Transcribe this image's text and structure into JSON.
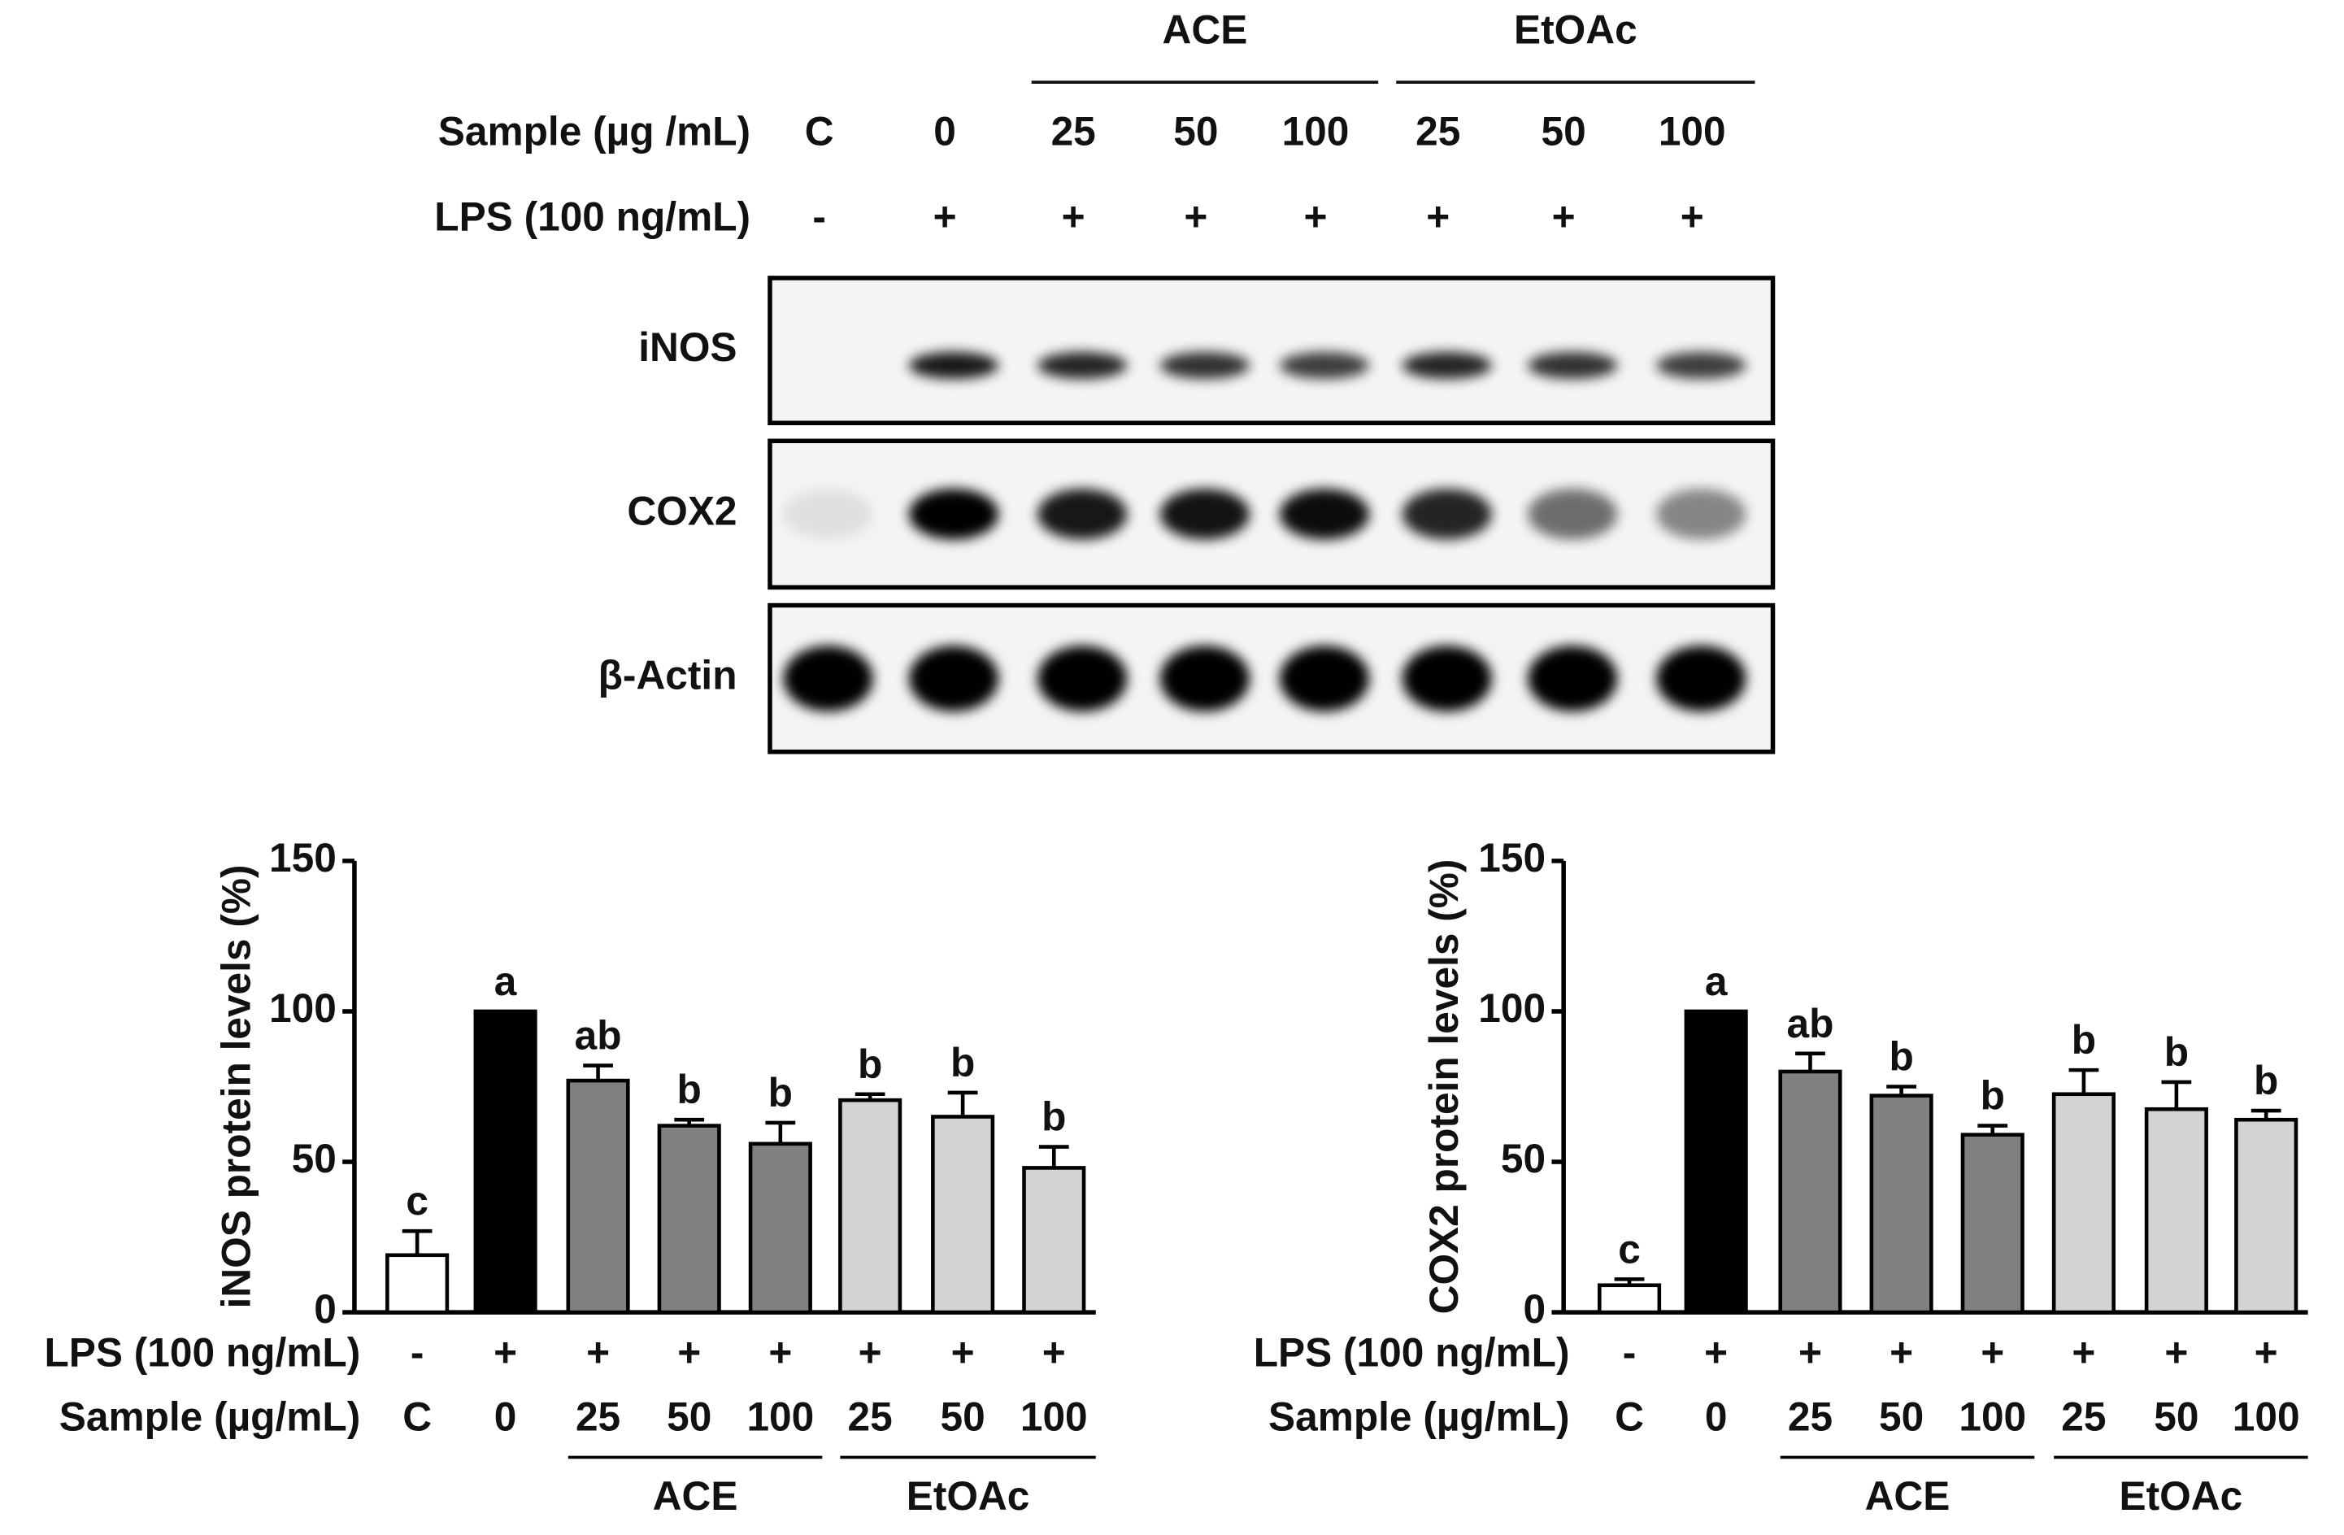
{
  "blot": {
    "sample_label": "Sample (µg /mL)",
    "lps_label": "LPS (100 ng/mL)",
    "groups": [
      "ACE",
      "EtOAc"
    ],
    "samples": [
      "C",
      "0",
      "25",
      "50",
      "100",
      "25",
      "50",
      "100"
    ],
    "lps": [
      "-",
      "+",
      "+",
      "+",
      "+",
      "+",
      "+",
      "+"
    ],
    "proteins": [
      "iNOS",
      "COX2",
      "β-Actin"
    ]
  },
  "chart_data": [
    {
      "type": "bar",
      "y_label": "iNOS protein levels (%)",
      "lps_label": "LPS (100 ng/mL)",
      "sample_label": "Sample (µg/mL)",
      "categories": [
        "C",
        "0",
        "25",
        "50",
        "100",
        "25",
        "50",
        "100"
      ],
      "lps": [
        "-",
        "+",
        "+",
        "+",
        "+",
        "+",
        "+",
        "+"
      ],
      "groups": [
        "ACE",
        "EtOAc"
      ],
      "values": [
        19,
        100,
        77,
        62,
        56,
        70.5,
        65,
        48
      ],
      "errors": [
        8,
        null,
        5,
        2,
        7,
        2,
        8,
        7
      ],
      "letters": [
        "c",
        "a",
        "ab",
        "b",
        "b",
        "b",
        "b",
        "b"
      ],
      "colors": [
        "#ffffff",
        "#000000",
        "#808080",
        "#808080",
        "#808080",
        "#d3d3d3",
        "#d3d3d3",
        "#d3d3d3"
      ],
      "ylim": [
        0,
        150
      ],
      "yticks": [
        0,
        50,
        100,
        150
      ]
    },
    {
      "type": "bar",
      "y_label": "COX2 protein levels (%)",
      "lps_label": "LPS (100 ng/mL)",
      "sample_label": "Sample (µg/mL)",
      "categories": [
        "C",
        "0",
        "25",
        "50",
        "100",
        "25",
        "50",
        "100"
      ],
      "lps": [
        "-",
        "+",
        "+",
        "+",
        "+",
        "+",
        "+",
        "+"
      ],
      "groups": [
        "ACE",
        "EtOAc"
      ],
      "values": [
        9,
        100,
        80,
        72,
        59,
        72.5,
        67.5,
        64
      ],
      "errors": [
        2,
        null,
        6,
        3,
        3,
        8,
        9,
        3
      ],
      "letters": [
        "c",
        "a",
        "ab",
        "b",
        "b",
        "b",
        "b",
        "b"
      ],
      "colors": [
        "#ffffff",
        "#000000",
        "#808080",
        "#808080",
        "#808080",
        "#d3d3d3",
        "#d3d3d3",
        "#d3d3d3"
      ],
      "ylim": [
        0,
        150
      ],
      "yticks": [
        0,
        50,
        100,
        150
      ]
    }
  ]
}
